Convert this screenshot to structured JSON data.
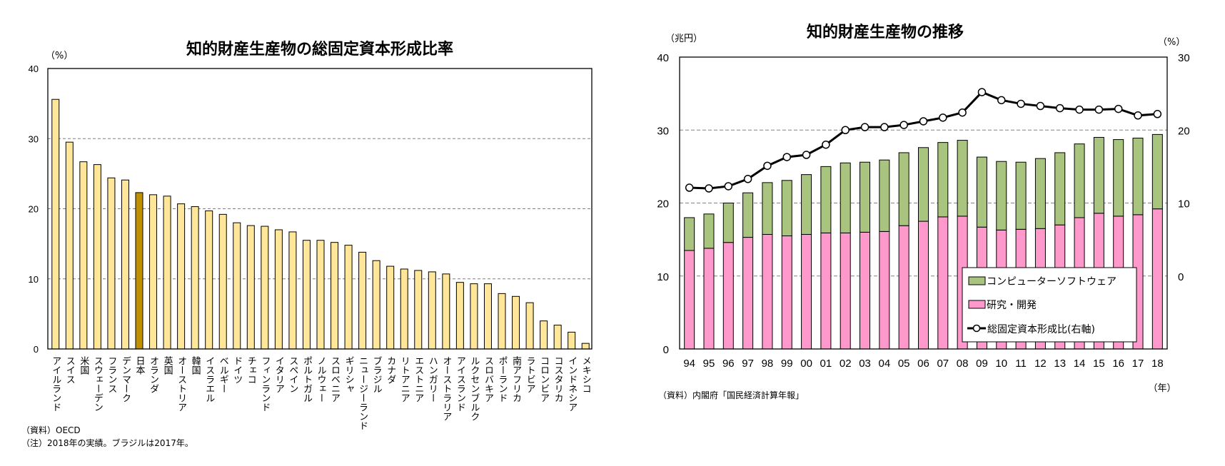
{
  "chart_data": [
    {
      "type": "bar",
      "title": "知的財産生産物の総固定資本形成比率",
      "ylabel": "（%）",
      "xlabel": "",
      "ylim": [
        0,
        40
      ],
      "yticks": [
        0,
        10,
        20,
        30,
        40
      ],
      "grid": true,
      "highlight_category": "日本",
      "colors": {
        "default": "#FFE699",
        "highlight": "#BF9000",
        "border": "#000000",
        "grid": "#808080"
      },
      "categories": [
        "アイルランド",
        "スイス",
        "米国",
        "スウェーデン",
        "フランス",
        "デンマーク",
        "日本",
        "オランダ",
        "英国",
        "オーストリア",
        "韓国",
        "イスラエル",
        "ベルギー",
        "ドイツ",
        "チェコ",
        "フィンランド",
        "イタリア",
        "スペイン",
        "ポルトガル",
        "ノルウェー",
        "スロベニア",
        "ギリシャ",
        "ニュージーランド",
        "ブラジル",
        "カナダ",
        "リトアニア",
        "エストニア",
        "ハンガリー",
        "オーストラリア",
        "アイスランド",
        "ルクセンブルク",
        "スロバキア",
        "ポーランド",
        "南アフリカ",
        "ラトビア",
        "コロンビア",
        "コスタリカ",
        "インドネシア",
        "メキシコ"
      ],
      "values": [
        35.6,
        29.5,
        26.7,
        26.3,
        24.4,
        24.1,
        22.3,
        22.0,
        21.8,
        20.7,
        20.3,
        19.7,
        19.2,
        18.0,
        17.6,
        17.5,
        17.0,
        16.7,
        15.5,
        15.5,
        15.2,
        14.8,
        13.8,
        12.6,
        11.8,
        11.4,
        11.2,
        11.0,
        10.7,
        9.5,
        9.3,
        9.3,
        7.9,
        7.5,
        6.6,
        4.0,
        3.4,
        2.4,
        0.8
      ],
      "notes": [
        "（資料）OECD",
        "（注）2018年の実績。ブラジルは2017年。"
      ]
    },
    {
      "type": "bar",
      "stacked": true,
      "title": "知的財産生産物の推移",
      "ylabel": "（兆円）",
      "ylabel_right": "（%）",
      "xlabel": "（年）",
      "ylim": [
        0,
        40
      ],
      "yticks": [
        0,
        10,
        20,
        30,
        40
      ],
      "ylim_right": [
        -10,
        30
      ],
      "yticks_right": [
        0,
        10,
        20,
        30
      ],
      "grid": true,
      "legend_position": "bottom-right",
      "categories": [
        "94",
        "95",
        "96",
        "97",
        "98",
        "99",
        "00",
        "01",
        "02",
        "03",
        "04",
        "05",
        "06",
        "07",
        "08",
        "09",
        "10",
        "11",
        "12",
        "13",
        "14",
        "15",
        "16",
        "17",
        "18"
      ],
      "series": [
        {
          "name": "研究・開発",
          "kind": "bar",
          "color": "#FF99CC",
          "values": [
            13.5,
            13.8,
            14.6,
            15.3,
            15.7,
            15.5,
            15.7,
            15.9,
            15.9,
            16.0,
            16.1,
            16.9,
            17.5,
            18.1,
            18.2,
            16.7,
            16.3,
            16.4,
            16.5,
            17.0,
            18.0,
            18.6,
            18.2,
            18.4,
            19.2
          ]
        },
        {
          "name": "コンピューターソフトウェア",
          "kind": "bar",
          "color": "#A9C47F",
          "values": [
            4.5,
            4.7,
            5.4,
            6.1,
            7.1,
            7.6,
            8.2,
            9.1,
            9.6,
            9.6,
            9.8,
            10.0,
            10.1,
            10.2,
            10.4,
            9.6,
            9.4,
            9.2,
            9.6,
            9.9,
            10.1,
            10.4,
            10.5,
            10.5,
            10.2
          ]
        },
        {
          "name": "総固定資本形成比(右軸)",
          "kind": "line",
          "axis": "right",
          "color": "#000000",
          "values": [
            12.1,
            12.0,
            12.3,
            13.3,
            15.1,
            16.3,
            16.6,
            18.0,
            20.0,
            20.4,
            20.4,
            20.7,
            21.2,
            21.7,
            22.4,
            25.2,
            24.1,
            23.6,
            23.3,
            23.0,
            22.8,
            22.8,
            22.9,
            22.0,
            22.2
          ]
        }
      ],
      "notes": [
        "（資料）内閣府「国民経済計算年報」"
      ]
    }
  ]
}
